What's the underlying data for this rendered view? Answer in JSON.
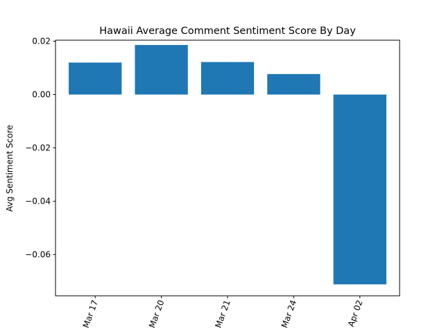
{
  "chart_data": {
    "type": "bar",
    "title": "Hawaii Average Comment Sentiment Score By Day",
    "xlabel": "",
    "ylabel": "Avg Sentiment Score",
    "categories": [
      "Mar 17",
      "Mar 20",
      "Mar 21",
      "Mar 24",
      "Apr 02"
    ],
    "values": [
      0.012,
      0.0186,
      0.0122,
      0.0077,
      -0.0712
    ],
    "ylim": [
      -0.0755,
      0.0204
    ],
    "yticks": [
      0.02,
      0.0,
      -0.02,
      -0.04,
      -0.06
    ],
    "ytick_labels": [
      "0.02",
      "0.00",
      "−0.02",
      "−0.04",
      "−0.06"
    ],
    "xtick_rotation": "70",
    "grid": false,
    "legend": "none",
    "colors": {
      "bar": "#1f77b4",
      "axis": "#000000",
      "background": "#ffffff"
    }
  }
}
